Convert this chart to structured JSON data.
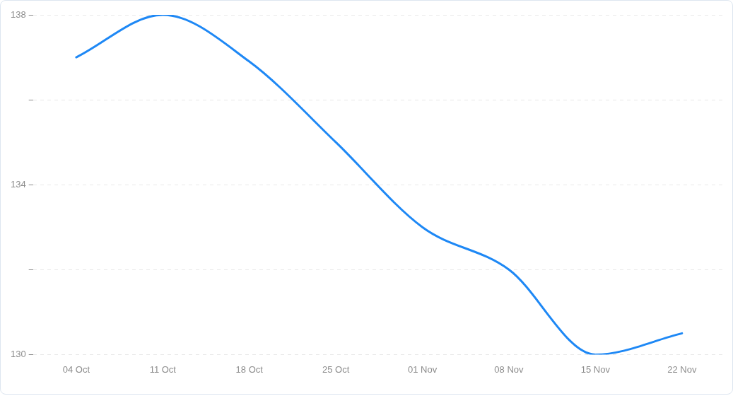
{
  "chart_data": {
    "type": "line",
    "categories": [
      "04 Oct",
      "11 Oct",
      "18 Oct",
      "25 Oct",
      "01 Nov",
      "08 Nov",
      "15 Nov",
      "22 Nov"
    ],
    "series": [
      {
        "color": "#1e88f5",
        "values": [
          137.0,
          138.0,
          136.9,
          135.0,
          133.0,
          132.0,
          130.0,
          130.5
        ]
      }
    ],
    "ylim": [
      130,
      138
    ],
    "yticks": [
      130,
      {
        "value": 132,
        "label": null
      },
      134,
      {
        "value": 136,
        "label": null
      },
      138
    ],
    "grid": "y",
    "marker": "none",
    "legend": false
  }
}
